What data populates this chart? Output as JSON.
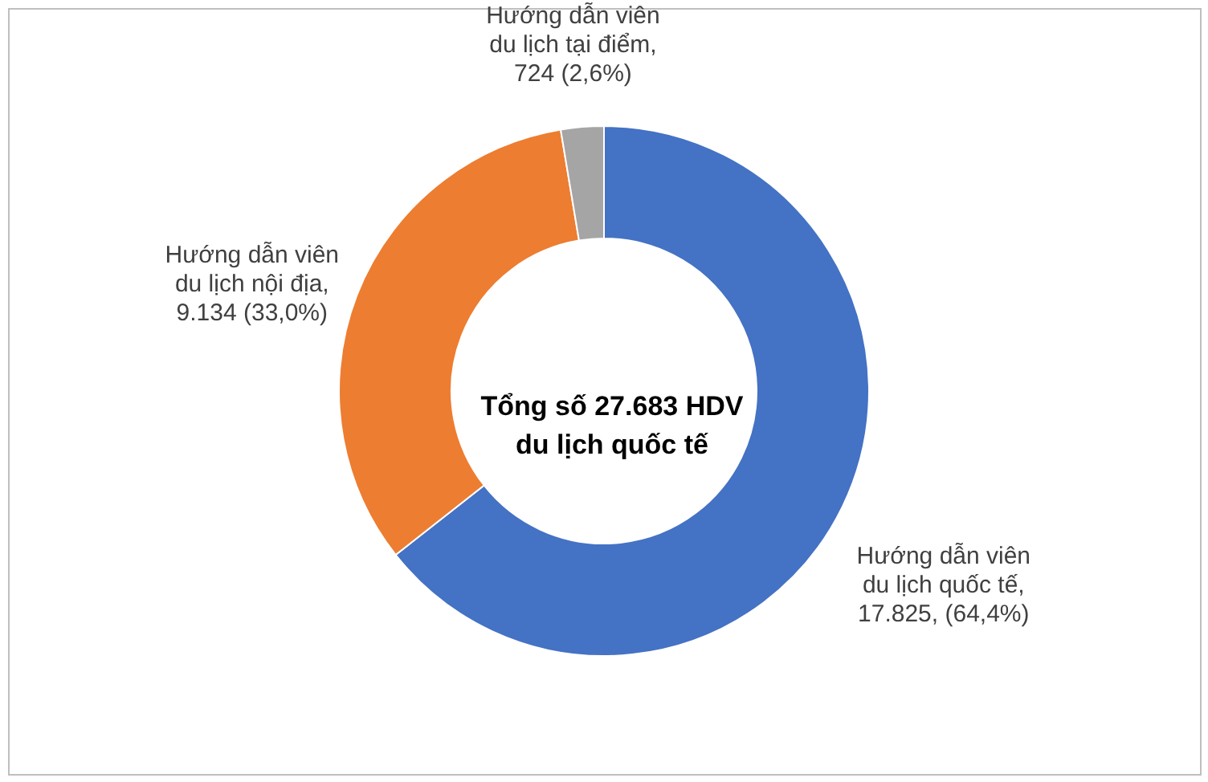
{
  "chart_data": {
    "type": "donut",
    "categories": [
      "Hướng dẫn viên du lịch quốc tế",
      "Hướng dẫn viên du lịch nội địa",
      "Hướng dẫn viên du lịch tại điểm"
    ],
    "values": [
      17825,
      9134,
      724
    ],
    "colors": [
      "#4472c4",
      "#ed7d31",
      "#a5a5a5"
    ],
    "value_labels": [
      ", 17.825, (64,4%)",
      ", 9.134 (33,0%)",
      ", 724 (2,6%)"
    ],
    "annotations": [
      "Tổng số 27.683 HDV du lịch quốc tế"
    ],
    "legend": false
  }
}
